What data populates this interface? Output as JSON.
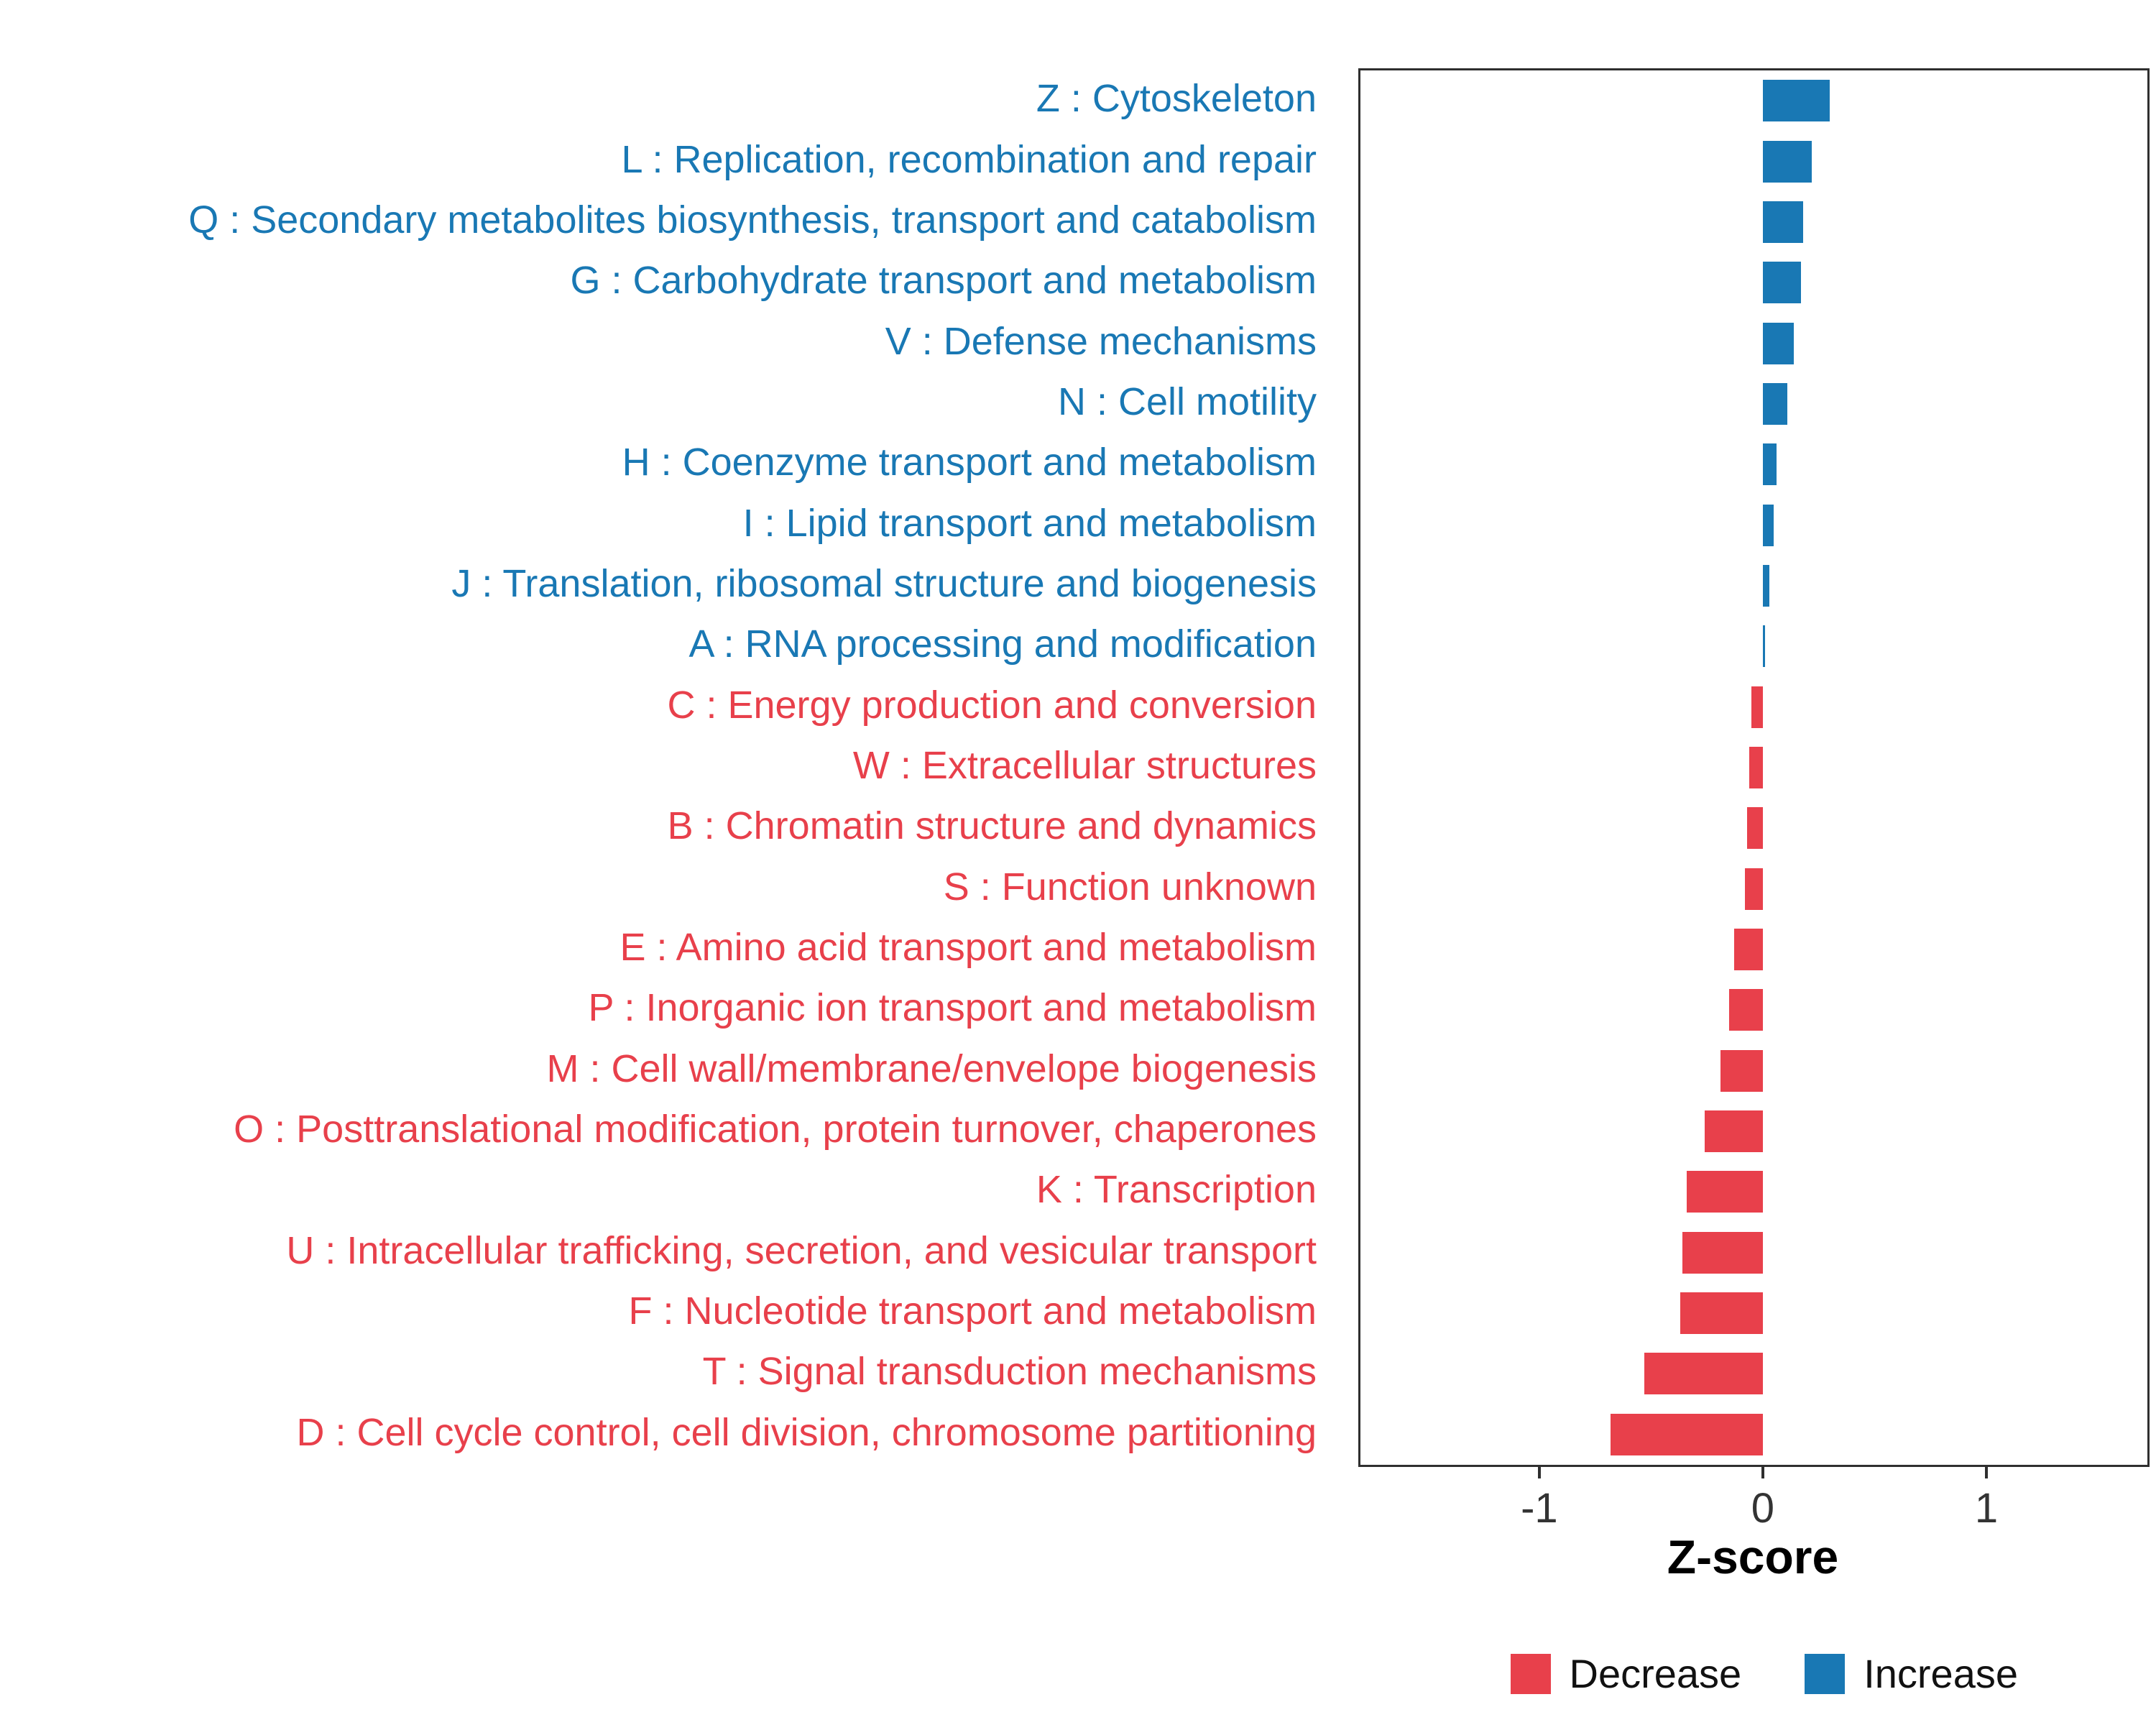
{
  "chart_data": {
    "type": "bar",
    "orientation": "horizontal",
    "title": "",
    "xlabel": "Z-score",
    "ylabel": "",
    "xlim": [
      -1.8,
      1.72
    ],
    "xticks": [
      -1,
      0,
      1
    ],
    "grid": false,
    "legend_position": "bottom-right",
    "colors": {
      "increase": "#1978B4",
      "decrease": "#E8404B"
    },
    "categories": [
      "Z : Cytoskeleton",
      "L : Replication, recombination and repair",
      "Q : Secondary metabolites biosynthesis, transport and catabolism",
      "G : Carbohydrate transport and metabolism",
      "V : Defense mechanisms",
      "N : Cell motility",
      "H : Coenzyme transport and metabolism",
      "I : Lipid transport and metabolism",
      "J : Translation, ribosomal structure and biogenesis",
      "A : RNA processing and modification",
      "C : Energy production and conversion",
      "W : Extracellular structures",
      "B : Chromatin structure and dynamics",
      "S : Function unknown",
      "E : Amino acid transport and metabolism",
      "P : Inorganic ion transport and metabolism",
      "M : Cell wall/membrane/envelope biogenesis",
      "O : Posttranslational modification, protein turnover, chaperones",
      "K : Transcription",
      "U : Intracellular trafficking, secretion, and vesicular transport",
      "F : Nucleotide transport and metabolism",
      "T : Signal transduction mechanisms",
      "D : Cell cycle control, cell division, chromosome partitioning"
    ],
    "values": [
      0.3,
      0.22,
      0.18,
      0.17,
      0.14,
      0.11,
      0.06,
      0.05,
      0.03,
      0.01,
      -0.05,
      -0.06,
      -0.07,
      -0.08,
      -0.13,
      -0.15,
      -0.19,
      -0.26,
      -0.34,
      -0.36,
      -0.37,
      -0.53,
      -0.68
    ],
    "legend": [
      {
        "label": "Decrease",
        "key": "decrease"
      },
      {
        "label": "Increase",
        "key": "increase"
      }
    ]
  }
}
